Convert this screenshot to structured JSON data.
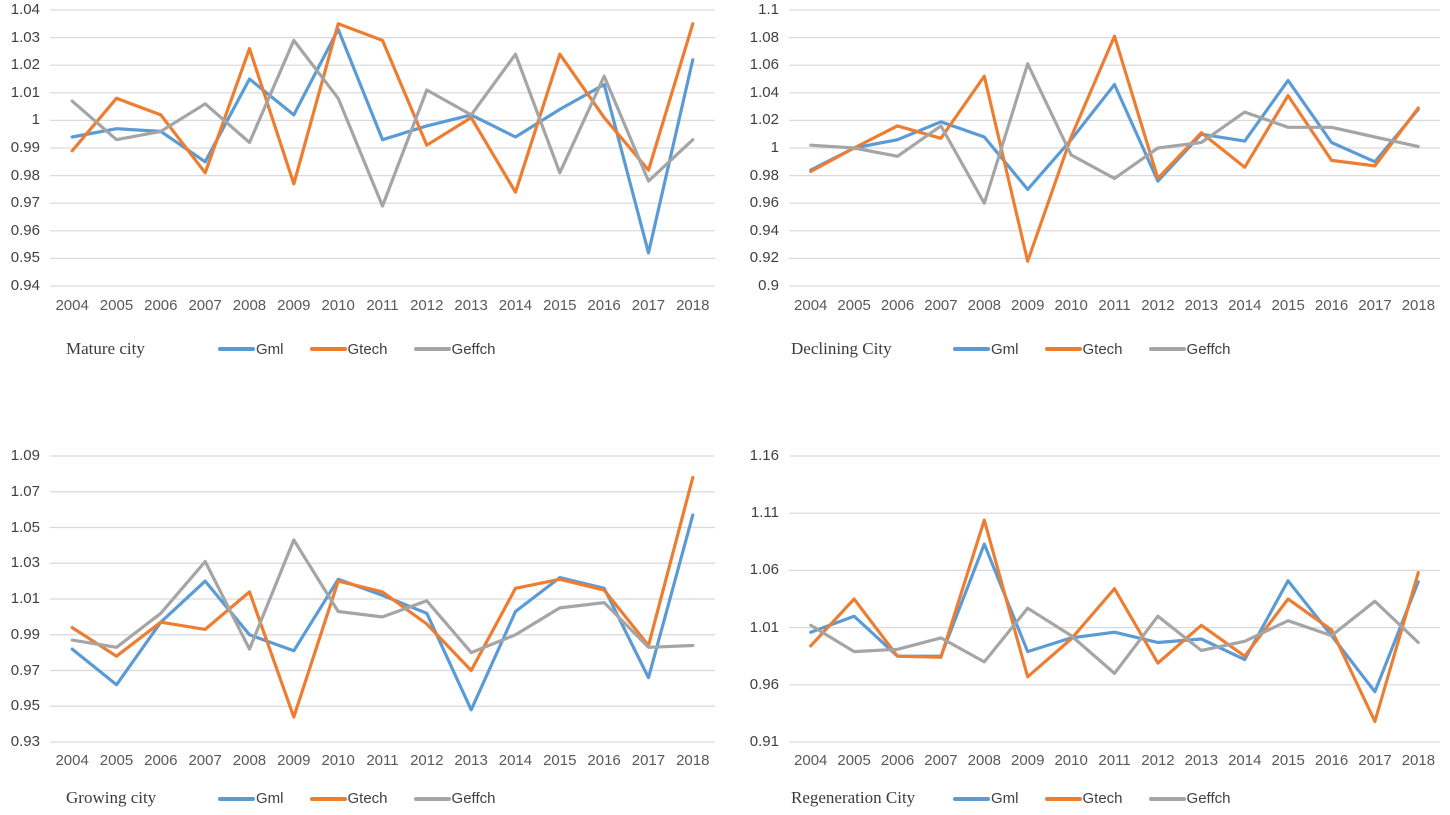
{
  "colors": {
    "gml": "#5B9BD5",
    "gtech": "#ED7D31",
    "geffch": "#A5A5A5",
    "gridline": "#D9D9D9",
    "axis_text": "#595959"
  },
  "chart_data": [
    {
      "type": "line",
      "title": "Mature city",
      "categories": [
        "2004",
        "2005",
        "2006",
        "2007",
        "2008",
        "2009",
        "2010",
        "2011",
        "2012",
        "2013",
        "2014",
        "2015",
        "2016",
        "2017",
        "2018"
      ],
      "ylim": [
        0.94,
        1.04
      ],
      "yticks": [
        "1.04",
        "1.03",
        "1.02",
        "1.01",
        "1",
        "0.99",
        "0.98",
        "0.97",
        "0.96",
        "0.95",
        "0.94"
      ],
      "grid": true,
      "legend_position": "bottom",
      "series": [
        {
          "name": "Gml",
          "color": "#5B9BD5",
          "values": [
            0.994,
            0.997,
            0.996,
            0.985,
            1.015,
            1.002,
            1.033,
            0.993,
            0.998,
            1.002,
            0.994,
            1.004,
            1.013,
            0.952,
            1.022
          ]
        },
        {
          "name": "Gtech",
          "color": "#ED7D31",
          "values": [
            0.989,
            1.008,
            1.002,
            0.981,
            1.026,
            0.977,
            1.035,
            1.029,
            0.991,
            1.001,
            0.974,
            1.024,
            1.001,
            0.982,
            1.035
          ]
        },
        {
          "name": "Geffch",
          "color": "#A5A5A5",
          "values": [
            1.007,
            0.993,
            0.996,
            1.006,
            0.992,
            1.029,
            1.008,
            0.969,
            1.011,
            1.002,
            1.024,
            0.981,
            1.016,
            0.978,
            0.993
          ]
        }
      ]
    },
    {
      "type": "line",
      "title": "Declining City",
      "categories": [
        "2004",
        "2005",
        "2006",
        "2007",
        "2008",
        "2009",
        "2010",
        "2011",
        "2012",
        "2013",
        "2014",
        "2015",
        "2016",
        "2017",
        "2018"
      ],
      "ylim": [
        0.9,
        1.1
      ],
      "yticks": [
        "1.1",
        "1.08",
        "1.06",
        "1.04",
        "1.02",
        "1",
        "0.98",
        "0.96",
        "0.94",
        "0.92",
        "0.9"
      ],
      "grid": true,
      "legend_position": "bottom",
      "series": [
        {
          "name": "Gml",
          "color": "#5B9BD5",
          "values": [
            0.984,
            1.0,
            1.006,
            1.019,
            1.008,
            0.97,
            1.006,
            1.046,
            0.976,
            1.01,
            1.005,
            1.049,
            1.004,
            0.99,
            1.028
          ]
        },
        {
          "name": "Gtech",
          "color": "#ED7D31",
          "values": [
            0.983,
            1.0,
            1.016,
            1.007,
            1.052,
            0.918,
            1.008,
            1.081,
            0.978,
            1.011,
            0.986,
            1.038,
            0.991,
            0.987,
            1.029
          ]
        },
        {
          "name": "Geffch",
          "color": "#A5A5A5",
          "values": [
            1.002,
            1.0,
            0.994,
            1.016,
            0.96,
            1.061,
            0.995,
            0.978,
            1.0,
            1.004,
            1.026,
            1.015,
            1.015,
            1.008,
            1.001
          ]
        }
      ]
    },
    {
      "type": "line",
      "title": "Growing city",
      "categories": [
        "2004",
        "2005",
        "2006",
        "2007",
        "2008",
        "2009",
        "2010",
        "2011",
        "2012",
        "2013",
        "2014",
        "2015",
        "2016",
        "2017",
        "2018"
      ],
      "ylim": [
        0.93,
        1.09
      ],
      "yticks": [
        "1.09",
        "1.07",
        "1.05",
        "1.03",
        "1.01",
        "0.99",
        "0.97",
        "0.95",
        "0.93"
      ],
      "grid": true,
      "legend_position": "bottom",
      "series": [
        {
          "name": "Gml",
          "color": "#5B9BD5",
          "values": [
            0.982,
            0.962,
            0.997,
            1.02,
            0.99,
            0.981,
            1.021,
            1.012,
            1.002,
            0.948,
            1.003,
            1.022,
            1.016,
            0.966,
            1.057
          ]
        },
        {
          "name": "Gtech",
          "color": "#ED7D31",
          "values": [
            0.994,
            0.978,
            0.997,
            0.993,
            1.014,
            0.944,
            1.02,
            1.014,
            0.996,
            0.97,
            1.016,
            1.021,
            1.015,
            0.984,
            1.078
          ]
        },
        {
          "name": "Geffch",
          "color": "#A5A5A5",
          "values": [
            0.987,
            0.983,
            1.002,
            1.031,
            0.982,
            1.043,
            1.003,
            1.0,
            1.009,
            0.98,
            0.99,
            1.005,
            1.008,
            0.983,
            0.984
          ]
        }
      ]
    },
    {
      "type": "line",
      "title": "Regeneration City",
      "categories": [
        "2004",
        "2005",
        "2006",
        "2007",
        "2008",
        "2009",
        "2010",
        "2011",
        "2012",
        "2013",
        "2014",
        "2015",
        "2016",
        "2017",
        "2018"
      ],
      "ylim": [
        0.91,
        1.16
      ],
      "yticks": [
        "1.16",
        "1.11",
        "1.06",
        "1.01",
        "0.96",
        "0.91"
      ],
      "grid": true,
      "legend_position": "bottom",
      "series": [
        {
          "name": "Gml",
          "color": "#5B9BD5",
          "values": [
            1.006,
            1.02,
            0.985,
            0.985,
            1.083,
            0.989,
            1.001,
            1.006,
            0.997,
            1.0,
            0.982,
            1.051,
            1.003,
            0.954,
            1.05
          ]
        },
        {
          "name": "Gtech",
          "color": "#ED7D31",
          "values": [
            0.994,
            1.035,
            0.985,
            0.984,
            1.104,
            0.967,
            1.0,
            1.044,
            0.979,
            1.012,
            0.985,
            1.035,
            1.008,
            0.928,
            1.058
          ]
        },
        {
          "name": "Geffch",
          "color": "#A5A5A5",
          "values": [
            1.012,
            0.989,
            0.991,
            1.001,
            0.98,
            1.027,
            1.003,
            0.97,
            1.02,
            0.99,
            0.998,
            1.016,
            1.003,
            1.033,
            0.997
          ]
        }
      ]
    }
  ]
}
